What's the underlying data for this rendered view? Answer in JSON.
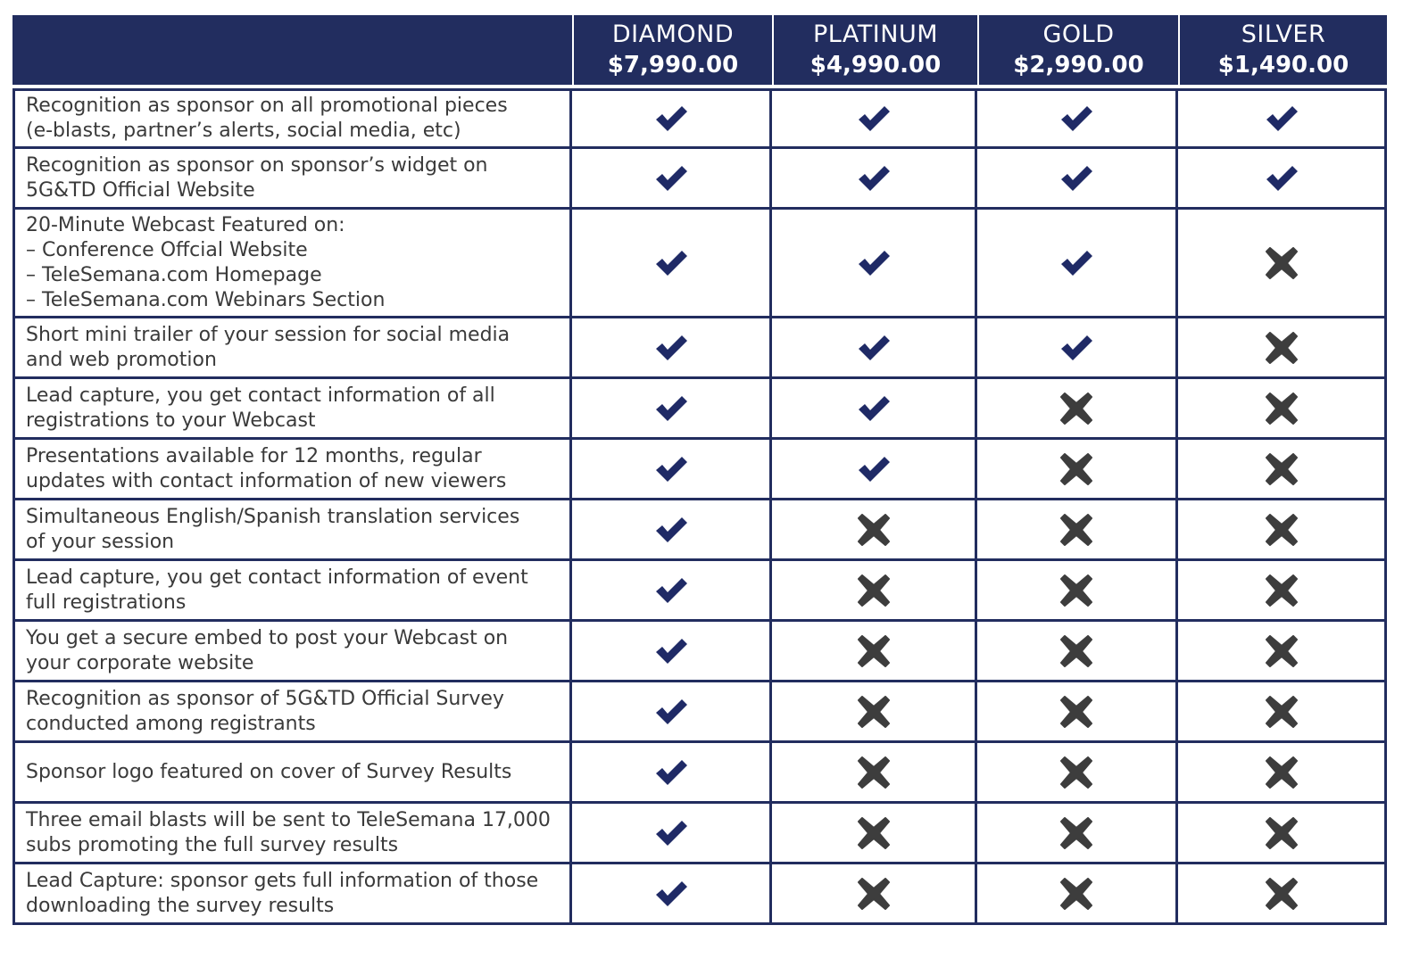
{
  "colors": {
    "header_bg": "#222d5f",
    "check": "#1f2a66",
    "cross": "#3d3d3d",
    "grid": "#222d5f"
  },
  "header": {
    "tiers": [
      {
        "name": "DIAMOND",
        "price": "$7,990.00"
      },
      {
        "name": "PLATINUM",
        "price": "$4,990.00"
      },
      {
        "name": "GOLD",
        "price": "$2,990.00"
      },
      {
        "name": "SILVER",
        "price": "$1,490.00"
      }
    ]
  },
  "rows": [
    {
      "feature": "Recognition as sponsor on all promotional pieces\n(e-blasts, partner’s alerts, social media, etc)",
      "marks": [
        "check-icon",
        "check-icon",
        "check-icon",
        "check-icon"
      ]
    },
    {
      "feature": "Recognition as sponsor on sponsor’s widget on\n5G&TD Official Website",
      "marks": [
        "check-icon",
        "check-icon",
        "check-icon",
        "check-icon"
      ]
    },
    {
      "feature": "20-Minute Webcast Featured on:\n– Conference Offcial Website\n– TeleSemana.com Homepage\n– TeleSemana.com Webinars Section",
      "marks": [
        "check-icon",
        "check-icon",
        "check-icon",
        "cross-icon"
      ]
    },
    {
      "feature": "Short mini trailer of your session for social media\nand web promotion",
      "marks": [
        "check-icon",
        "check-icon",
        "check-icon",
        "cross-icon"
      ]
    },
    {
      "feature": "Lead capture, you get contact information of all\nregistrations to your Webcast",
      "marks": [
        "check-icon",
        "check-icon",
        "cross-icon",
        "cross-icon"
      ]
    },
    {
      "feature": "Presentations available for 12 months, regular\nupdates with contact information of new viewers",
      "marks": [
        "check-icon",
        "check-icon",
        "cross-icon",
        "cross-icon"
      ]
    },
    {
      "feature": "Simultaneous English/Spanish translation services\nof your session",
      "marks": [
        "check-icon",
        "cross-icon",
        "cross-icon",
        "cross-icon"
      ]
    },
    {
      "feature": "Lead capture, you get contact information of event\nfull registrations",
      "marks": [
        "check-icon",
        "cross-icon",
        "cross-icon",
        "cross-icon"
      ]
    },
    {
      "feature": "You get a secure embed to post your Webcast on\nyour corporate website",
      "marks": [
        "check-icon",
        "cross-icon",
        "cross-icon",
        "cross-icon"
      ]
    },
    {
      "feature": "Recognition as sponsor of 5G&TD Official Survey\nconducted among registrants",
      "marks": [
        "check-icon",
        "cross-icon",
        "cross-icon",
        "cross-icon"
      ]
    },
    {
      "feature": "Sponsor logo featured on cover of Survey Results",
      "marks": [
        "check-icon",
        "cross-icon",
        "cross-icon",
        "cross-icon"
      ]
    },
    {
      "feature": "Three email blasts will be sent to TeleSemana 17,000\nsubs promoting the full survey results",
      "marks": [
        "check-icon",
        "cross-icon",
        "cross-icon",
        "cross-icon"
      ]
    },
    {
      "feature": "Lead Capture: sponsor gets full information of those\ndownloading the survey results",
      "marks": [
        "check-icon",
        "cross-icon",
        "cross-icon",
        "cross-icon"
      ]
    }
  ]
}
